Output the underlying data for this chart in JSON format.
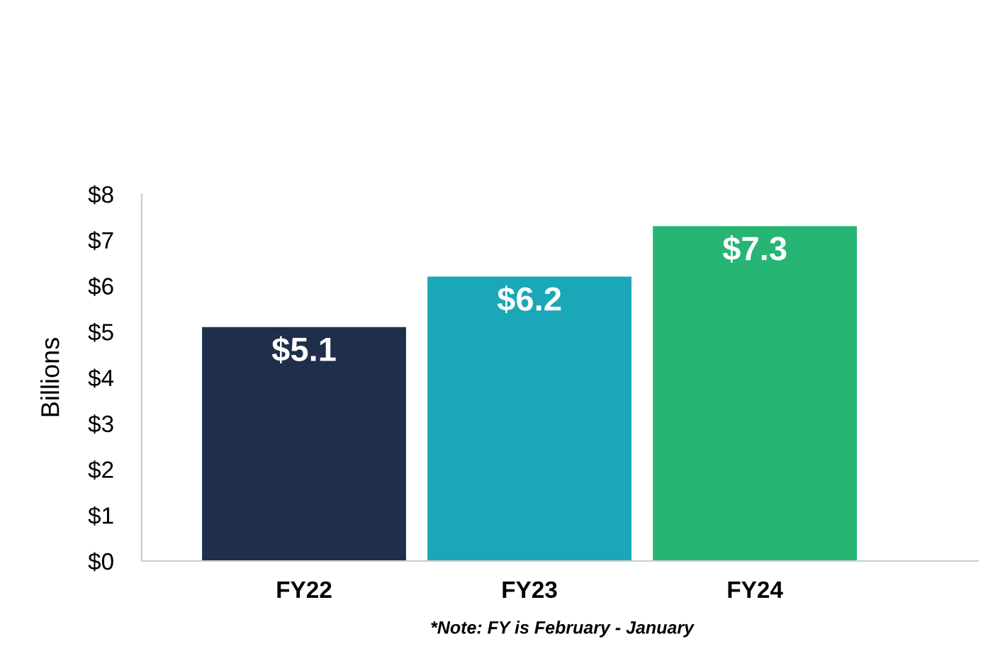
{
  "chart_data": {
    "type": "bar",
    "ylabel": "Billions",
    "categories": [
      "FY22",
      "FY23",
      "FY24"
    ],
    "values": [
      5.1,
      6.2,
      7.3
    ],
    "colors": [
      "#1f2f4b",
      "#1aa7b8",
      "#27b573"
    ],
    "value_labels": [
      "$5.1",
      "$6.2",
      "$7.3"
    ],
    "ylim": [
      0,
      8
    ],
    "yticks": [
      {
        "value": 0,
        "label": "$0"
      },
      {
        "value": 1,
        "label": "$1"
      },
      {
        "value": 2,
        "label": "$2"
      },
      {
        "value": 3,
        "label": "$3"
      },
      {
        "value": 4,
        "label": "$4"
      },
      {
        "value": 5,
        "label": "$5"
      },
      {
        "value": 6,
        "label": "$6"
      },
      {
        "value": 7,
        "label": "$7"
      },
      {
        "value": 8,
        "label": "$8"
      }
    ],
    "grid": false,
    "legend": false,
    "annotations": [
      "*Note: FY is February - January"
    ]
  }
}
